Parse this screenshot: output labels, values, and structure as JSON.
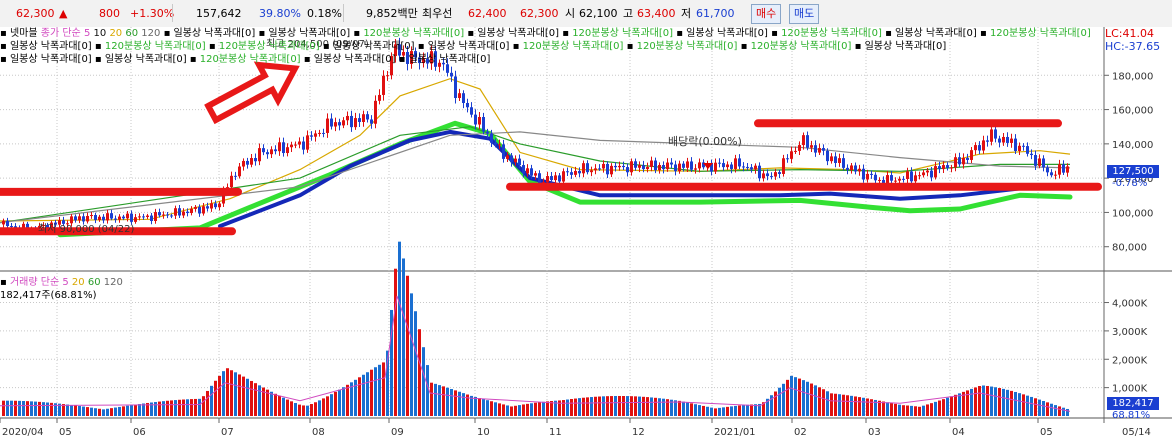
{
  "quote": {
    "price": "62,300",
    "arrow": "▲",
    "change": "800",
    "change_pct": "+1.30%",
    "volume": "157,642",
    "vol_ratio": "39.80%",
    "turnover": "0.18%",
    "amount": "9,852백만",
    "pref_label": "최우선",
    "ask": "62,400",
    "bid": "62,300",
    "open_label": "시",
    "open": "62,100",
    "high_label": "고",
    "high": "63,400",
    "low_label": "저",
    "low": "61,700",
    "buy_label": "매수",
    "sell_label": "매도"
  },
  "legend": {
    "name": "넷마블",
    "close_label": "종가",
    "ma_label": "단순",
    "ma": [
      "5",
      "10",
      "20",
      "60",
      "120"
    ],
    "ind_daily": "일봉상 낙폭과대[0]",
    "ind_120": "120분봉상 낙폭과대[0]",
    "rows": [
      [
        "d",
        "d",
        "120",
        "d",
        "120",
        "d",
        "120",
        "d",
        "120"
      ],
      [
        "d",
        "120",
        "120",
        "d",
        "d",
        "120",
        "120",
        "120",
        "d"
      ],
      [
        "d",
        "d",
        "120",
        "d",
        "d"
      ]
    ],
    "max_text": "최고 204,500 (09/07)",
    "min_text": "최저 90,000 (04/22)",
    "dividend_text": "배당락(0.00%)"
  },
  "right_panel": {
    "lc": "LC:41.04",
    "hc": "HC:-37.65",
    "price_box": "127,500",
    "price_pct": "-0.78%",
    "vol_box": "182,417",
    "vol_pct": "68.81%"
  },
  "volume_legend": {
    "label": "거래량",
    "ma_label": "단순",
    "ma": [
      "5",
      "20",
      "60",
      "120"
    ],
    "current": "182,417주(68.81%)"
  },
  "chart_data": {
    "type": "candlestick",
    "x_labels": [
      "2020/04",
      "05",
      "06",
      "07",
      "08",
      "09",
      "10",
      "11",
      "12",
      "2021/01",
      "02",
      "03",
      "04",
      "05",
      "05/14"
    ],
    "price_axis": {
      "ticks": [
        "80,000",
        "100,000",
        "120,000",
        "140,000",
        "160,000",
        "180,000"
      ],
      "ylim": [
        67000,
        207000
      ]
    },
    "price_anchors": [
      [
        0,
        93000
      ],
      [
        30,
        90000
      ],
      [
        80,
        97000
      ],
      [
        140,
        97000
      ],
      [
        180,
        100000
      ],
      [
        215,
        104000
      ],
      [
        235,
        125000
      ],
      [
        260,
        135000
      ],
      [
        300,
        140000
      ],
      [
        330,
        152000
      ],
      [
        370,
        155000
      ],
      [
        392,
        195000
      ],
      [
        410,
        190000
      ],
      [
        440,
        188000
      ],
      [
        460,
        165000
      ],
      [
        500,
        135000
      ],
      [
        540,
        118000
      ],
      [
        580,
        125000
      ],
      [
        640,
        127000
      ],
      [
        700,
        127000
      ],
      [
        740,
        128000
      ],
      [
        770,
        120000
      ],
      [
        800,
        142000
      ],
      [
        840,
        128000
      ],
      [
        880,
        118000
      ],
      [
        920,
        122000
      ],
      [
        960,
        130000
      ],
      [
        990,
        145000
      ],
      [
        1020,
        138000
      ],
      [
        1050,
        122000
      ],
      [
        1068,
        127500
      ]
    ],
    "ma_lines": [
      {
        "name": "20",
        "color": "#d8a800",
        "points": [
          [
            0,
            95000
          ],
          [
            150,
            96000
          ],
          [
            230,
            108000
          ],
          [
            300,
            125000
          ],
          [
            360,
            145000
          ],
          [
            400,
            168000
          ],
          [
            450,
            178000
          ],
          [
            480,
            172000
          ],
          [
            520,
            135000
          ],
          [
            580,
            125000
          ],
          [
            700,
            124000
          ],
          [
            780,
            126000
          ],
          [
            850,
            125000
          ],
          [
            900,
            123000
          ],
          [
            980,
            134000
          ],
          [
            1040,
            136000
          ],
          [
            1070,
            134000
          ]
        ]
      },
      {
        "name": "60",
        "color": "#2a9c2a",
        "points": [
          [
            0,
            94000
          ],
          [
            300,
            120000
          ],
          [
            400,
            145000
          ],
          [
            470,
            150000
          ],
          [
            520,
            140000
          ],
          [
            600,
            130000
          ],
          [
            700,
            124000
          ],
          [
            800,
            125000
          ],
          [
            900,
            124000
          ],
          [
            1000,
            128000
          ],
          [
            1070,
            128000
          ]
        ]
      },
      {
        "name": "120",
        "color": "#888",
        "points": [
          [
            0,
            94000
          ],
          [
            300,
            115000
          ],
          [
            450,
            145000
          ],
          [
            520,
            147000
          ],
          [
            600,
            142000
          ],
          [
            700,
            140000
          ],
          [
            800,
            138000
          ],
          [
            900,
            132000
          ],
          [
            1000,
            127000
          ],
          [
            1070,
            126000
          ]
        ]
      }
    ],
    "blue_band": [
      [
        220,
        92000
      ],
      [
        300,
        110000
      ],
      [
        350,
        127000
      ],
      [
        410,
        142000
      ],
      [
        450,
        147000
      ],
      [
        490,
        143000
      ],
      [
        530,
        120000
      ],
      [
        600,
        110000
      ],
      [
        700,
        110000
      ],
      [
        780,
        110000
      ],
      [
        830,
        111000
      ],
      [
        900,
        108000
      ],
      [
        960,
        110000
      ],
      [
        1020,
        114000
      ],
      [
        1068,
        115000
      ]
    ],
    "green_band": [
      [
        60,
        87000
      ],
      [
        200,
        91000
      ],
      [
        250,
        103000
      ],
      [
        330,
        122000
      ],
      [
        400,
        140000
      ],
      [
        455,
        152000
      ],
      [
        490,
        146000
      ],
      [
        530,
        118000
      ],
      [
        580,
        106000
      ],
      [
        700,
        106000
      ],
      [
        800,
        107000
      ],
      [
        870,
        103000
      ],
      [
        910,
        101000
      ],
      [
        960,
        102000
      ],
      [
        1020,
        110000
      ],
      [
        1070,
        109000
      ]
    ],
    "red_lines": [
      [
        0,
        112000,
        238,
        112000
      ],
      [
        0,
        89000,
        232,
        89000
      ],
      [
        510,
        115000,
        1098,
        115000
      ],
      [
        758,
        152000,
        1058,
        152000
      ]
    ],
    "arrow": {
      "from": [
        212,
        158000
      ],
      "to": [
        295,
        184000
      ]
    },
    "volume_axis": {
      "ticks": [
        "1,000K",
        "2,000K",
        "3,000K",
        "4,000K"
      ],
      "ylim": [
        0,
        4900
      ]
    },
    "volume_anchors": [
      [
        0,
        400
      ],
      [
        200,
        450
      ],
      [
        225,
        1300
      ],
      [
        300,
        600
      ],
      [
        385,
        1500
      ],
      [
        397,
        4700
      ],
      [
        430,
        900
      ],
      [
        470,
        700
      ],
      [
        560,
        500
      ],
      [
        680,
        550
      ],
      [
        760,
        400
      ],
      [
        790,
        1100
      ],
      [
        830,
        600
      ],
      [
        900,
        500
      ],
      [
        980,
        900
      ],
      [
        1070,
        182
      ]
    ]
  }
}
